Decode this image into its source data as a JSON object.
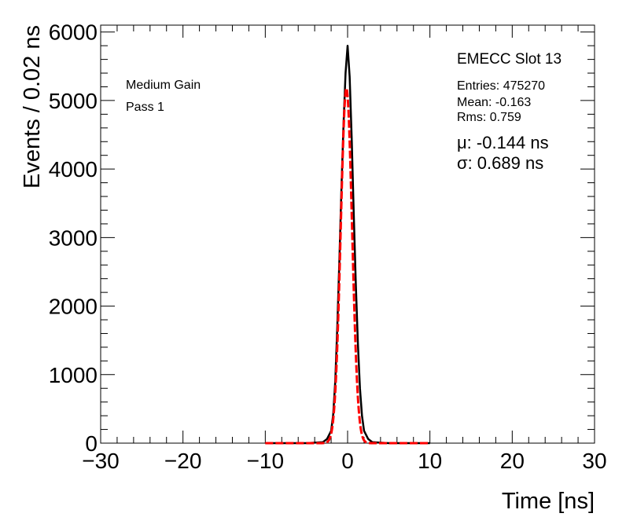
{
  "chart_data": {
    "type": "line",
    "xlabel": "Time [ns]",
    "ylabel": "Events / 0.02 ns",
    "xlim": [
      -30,
      30
    ],
    "ylim": [
      0,
      6100
    ],
    "xticks": [
      -30,
      -20,
      -10,
      0,
      10,
      20,
      30
    ],
    "yticks": [
      0,
      1000,
      2000,
      3000,
      4000,
      5000,
      6000
    ],
    "grid": false,
    "legend": "none",
    "annotations": {
      "gain": "Medium Gain",
      "pass": "Pass 1",
      "slot": "EMECC Slot 13",
      "entries": "Entries: 475270",
      "mean": "Mean: -0.163",
      "rms": "Rms: 0.759",
      "mu": "μ: -0.144 ns",
      "sigma": "σ: 0.689 ns"
    },
    "series": [
      {
        "kind": "histogram",
        "color": "#000000",
        "x": [
          -10,
          -5,
          -3,
          -2.5,
          -2,
          -1.75,
          -1.5,
          -1.25,
          -1,
          -0.75,
          -0.5,
          -0.25,
          0,
          0.25,
          0.5,
          0.75,
          1,
          1.25,
          1.5,
          1.75,
          2,
          2.5,
          3,
          5,
          10
        ],
        "y": [
          0,
          0,
          15,
          60,
          180,
          420,
          900,
          1700,
          2650,
          3700,
          4650,
          5400,
          5800,
          5350,
          4450,
          3350,
          2300,
          1450,
          800,
          400,
          180,
          60,
          15,
          0,
          0
        ]
      },
      {
        "kind": "gaussian-fit",
        "color": "#ff0000",
        "mu": -0.144,
        "sigma": 0.689,
        "amplitude": 5180,
        "xrange": [
          -10,
          10
        ]
      }
    ]
  }
}
